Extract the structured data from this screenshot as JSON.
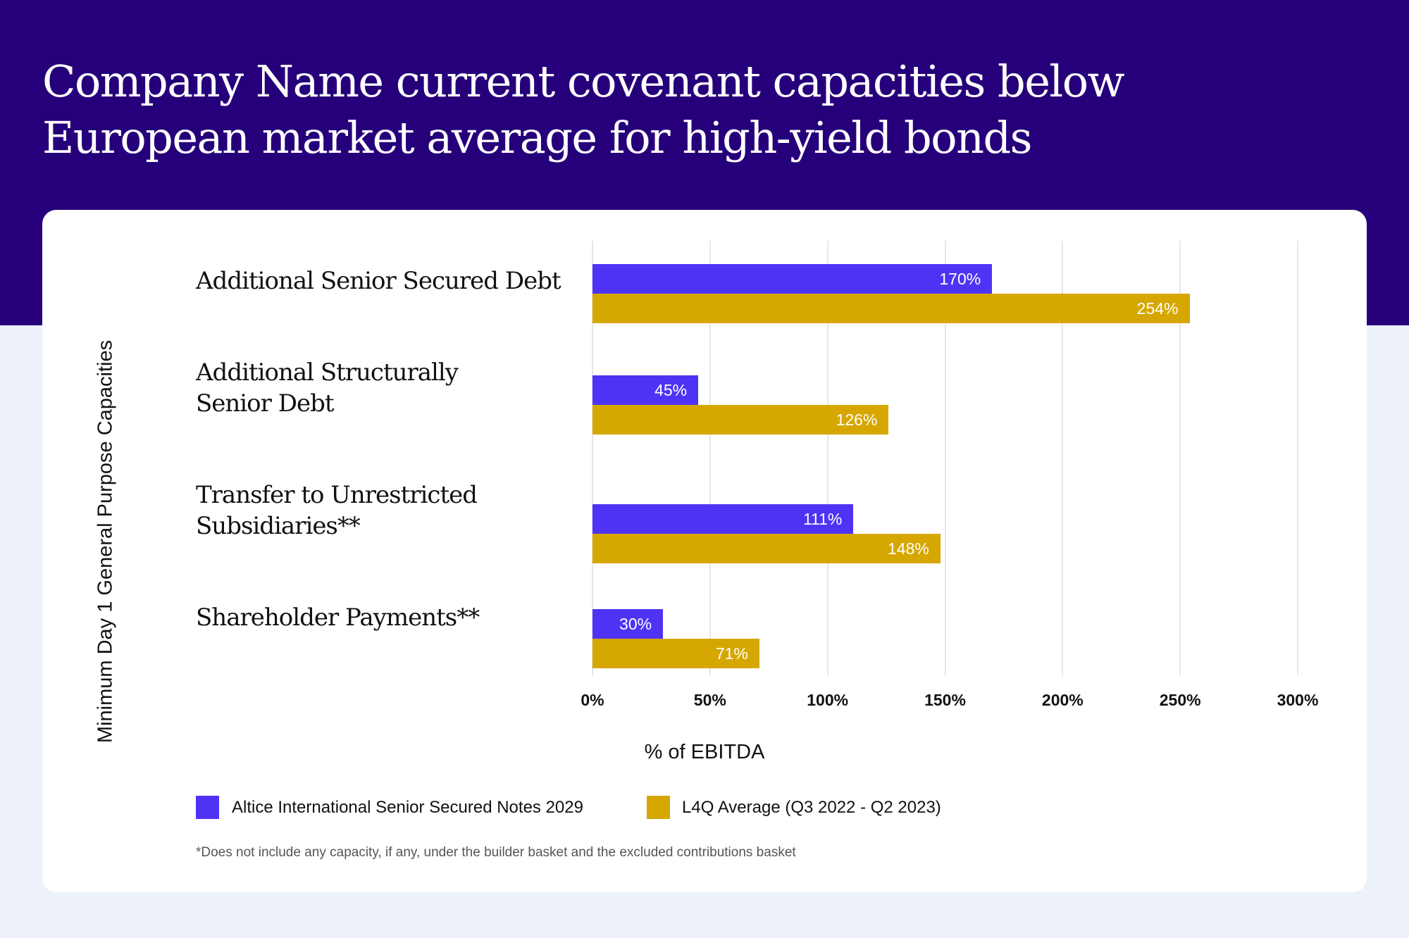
{
  "title_lines": [
    "Company Name current covenant capacities below",
    "European market average for high-yield bonds"
  ],
  "colors": {
    "header": "#26007A",
    "background": "#EDF1FA",
    "series1": "#4F33F5",
    "series2": "#D6A700"
  },
  "chart_data": {
    "type": "bar",
    "orientation": "horizontal",
    "categories": [
      [
        "Additional Senior Secured Debt"
      ],
      [
        "Additional Structurally",
        "Senior Debt"
      ],
      [
        "Transfer to Unrestricted",
        "Subsidiaries**"
      ],
      [
        "Shareholder Payments**"
      ]
    ],
    "series": [
      {
        "name": "Altice International Senior Secured Notes 2029",
        "color": "#4F33F5",
        "values": [
          170,
          45,
          111,
          30
        ],
        "labels": [
          "170%",
          "45%",
          "111%",
          "30%"
        ]
      },
      {
        "name": "L4Q Average (Q3 2022 - Q2 2023)",
        "color": "#D6A700",
        "values": [
          254,
          126,
          148,
          71
        ],
        "labels": [
          "254%",
          "126%",
          "148%",
          "71%"
        ]
      }
    ],
    "xlim": [
      0,
      300
    ],
    "xticks": [
      0,
      50,
      100,
      150,
      200,
      250,
      300
    ],
    "xtick_labels": [
      "0%",
      "50%",
      "100%",
      "150%",
      "200%",
      "250%",
      "300%"
    ],
    "xlabel": "% of EBITDA",
    "ylabel": "Minimum Day 1 General Purpose Capacities",
    "grid": "vertical",
    "legend": "bottom"
  },
  "footnote": "*Does not  include any capacity,  if any, under the builder basket and the excluded contributions basket"
}
